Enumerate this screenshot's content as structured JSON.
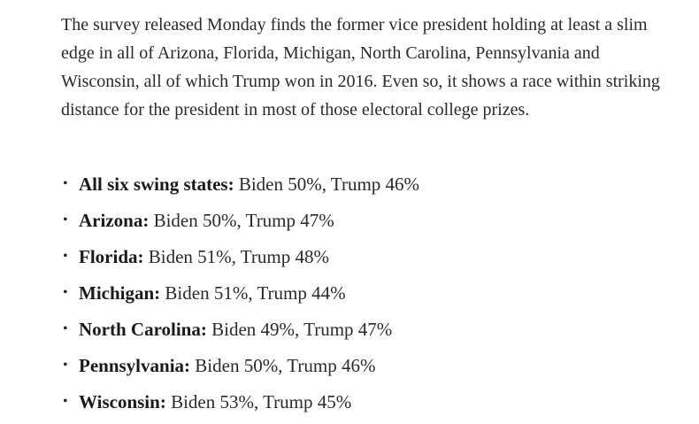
{
  "article": {
    "paragraph": "The survey released Monday finds the former vice president holding at least a slim edge in all of Arizona, Florida, Michigan, North Carolina, Pennsylvania and Wisconsin, all of which Trump won in 2016. Even so, it shows a race within striking distance for the president in most of those electoral college prizes.",
    "bullet_glyph": "•",
    "results": [
      {
        "label": "All six swing states:",
        "value": " Biden 50%, Trump 46%"
      },
      {
        "label": "Arizona:",
        "value": " Biden 50%, Trump 47%"
      },
      {
        "label": "Florida:",
        "value": " Biden 51%, Trump 48%"
      },
      {
        "label": "Michigan:",
        "value": " Biden 51%, Trump 44%"
      },
      {
        "label": "North Carolina:",
        "value": " Biden 49%, Trump 47%"
      },
      {
        "label": "Pennsylvania:",
        "value": " Biden 50%, Trump 46%"
      },
      {
        "label": "Wisconsin:",
        "value": " Biden 53%, Trump 45%"
      }
    ]
  }
}
